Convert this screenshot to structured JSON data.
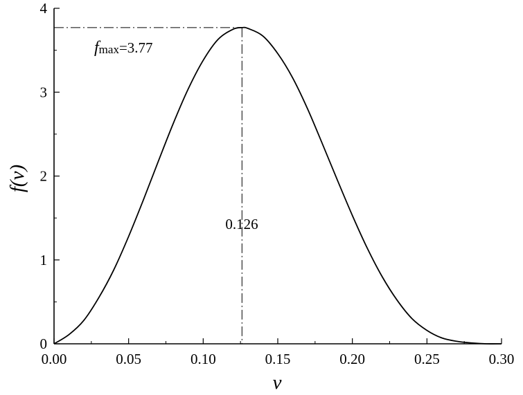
{
  "chart_data": {
    "type": "line",
    "xlabel": "v",
    "ylabel": "f(v)",
    "ylabel_func": "f",
    "ylabel_var": "(v)",
    "xlim": [
      0,
      0.3
    ],
    "ylim": [
      0,
      4
    ],
    "x_ticks": [
      "0.00",
      "0.05",
      "0.10",
      "0.15",
      "0.20",
      "0.25",
      "0.30"
    ],
    "y_ticks": [
      "0",
      "1",
      "2",
      "3",
      "4"
    ],
    "grid": false,
    "series": [
      {
        "x": [
          0.0,
          0.01,
          0.02,
          0.03,
          0.04,
          0.05,
          0.06,
          0.07,
          0.08,
          0.09,
          0.1,
          0.11,
          0.12,
          0.126,
          0.13,
          0.14,
          0.15,
          0.16,
          0.17,
          0.18,
          0.19,
          0.2,
          0.21,
          0.22,
          0.23,
          0.24,
          0.25,
          0.26,
          0.27,
          0.28,
          0.29,
          0.3
        ],
        "y": [
          0.0,
          0.11,
          0.28,
          0.55,
          0.88,
          1.28,
          1.72,
          2.18,
          2.63,
          3.04,
          3.38,
          3.63,
          3.75,
          3.77,
          3.76,
          3.67,
          3.46,
          3.17,
          2.8,
          2.38,
          1.95,
          1.53,
          1.14,
          0.8,
          0.52,
          0.3,
          0.16,
          0.07,
          0.03,
          0.01,
          0.0,
          0.0
        ]
      }
    ],
    "annotations": {
      "fmax_prefix": "f",
      "fmax_sub": "max",
      "fmax_text": "=3.77",
      "fmax_value": 3.77,
      "peak_x": 0.126,
      "peak_x_label": "0.126"
    },
    "colors": {
      "line": "#000000",
      "axis": "#000000"
    }
  }
}
